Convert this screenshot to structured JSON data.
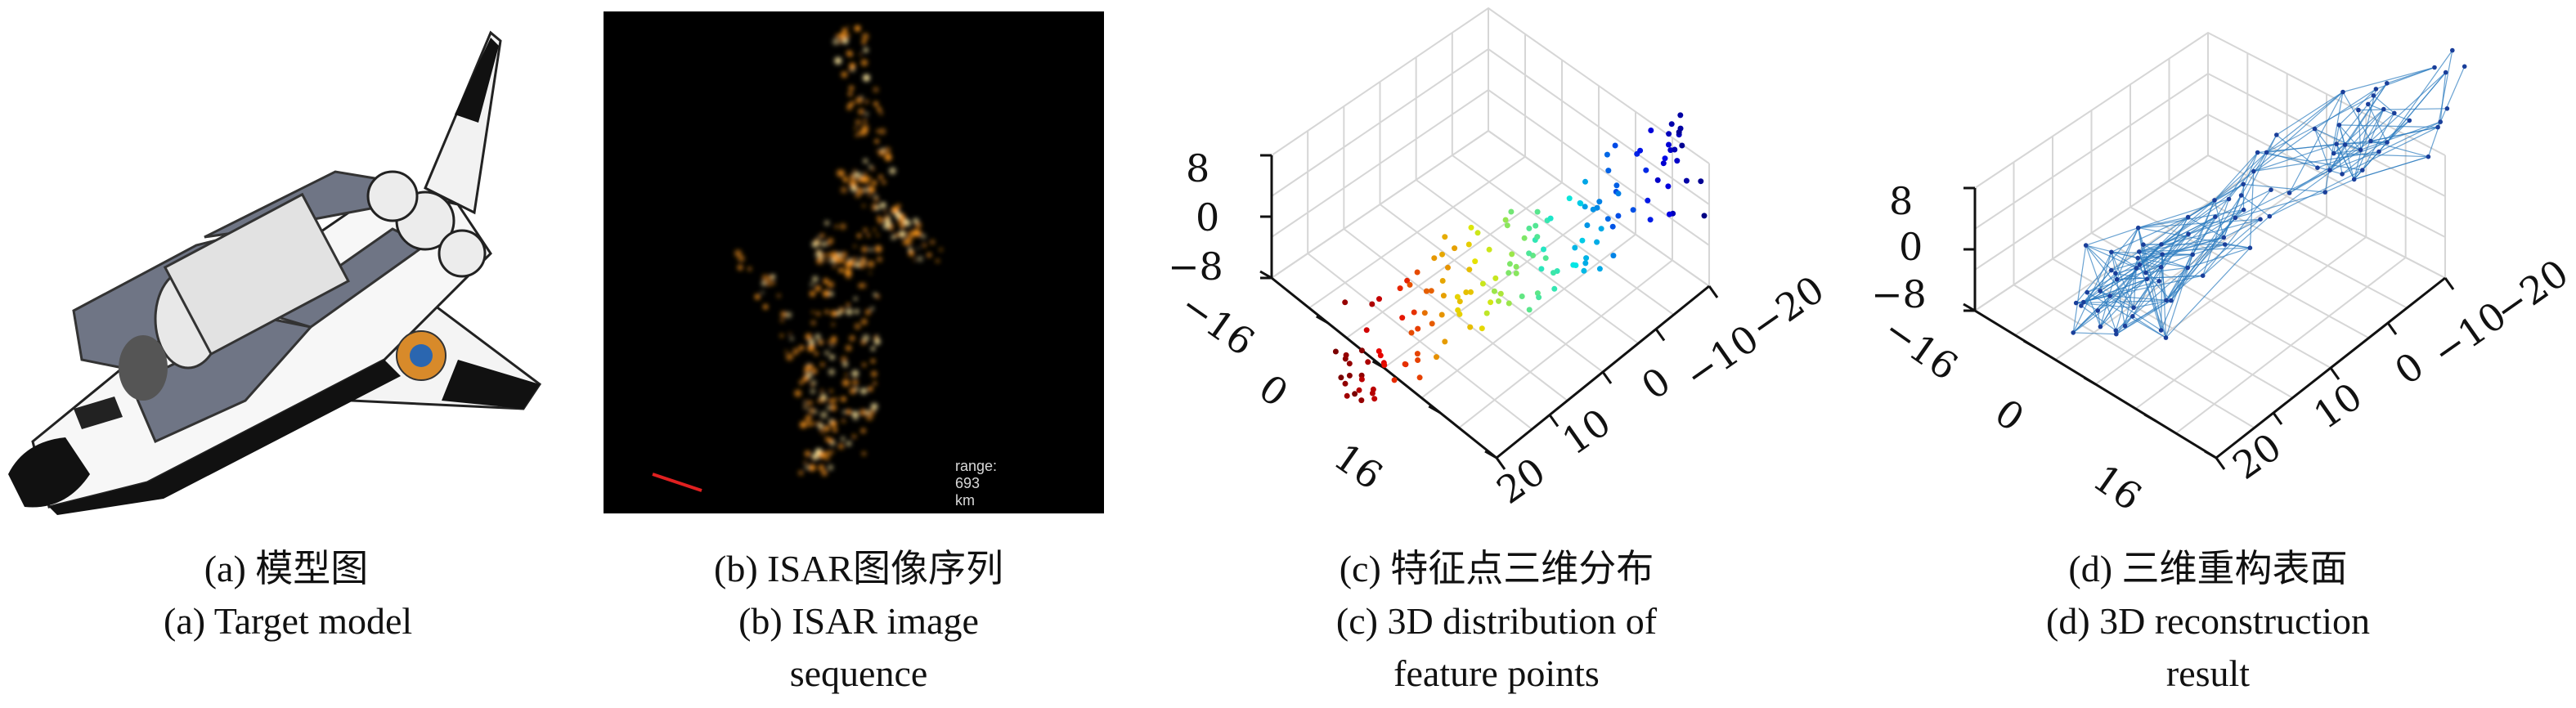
{
  "panels": [
    {
      "id": "a",
      "caption_zh": "(a) 模型图",
      "caption_en": [
        "(a) Target model"
      ]
    },
    {
      "id": "b",
      "caption_zh": "(b) ISAR图像序列",
      "caption_en": [
        "(b) ISAR image",
        "sequence"
      ],
      "range_label": "range: 693 km"
    },
    {
      "id": "c",
      "caption_zh": "(c) 特征点三维分布",
      "caption_en": [
        "(c) 3D distribution of",
        "feature points"
      ],
      "z_ticks": [
        "8",
        "0",
        "−8"
      ],
      "y_ticks": [
        "−16",
        "0",
        "16"
      ],
      "x_ticks": [
        "20",
        "10",
        "0",
        "−10",
        "−20"
      ]
    },
    {
      "id": "d",
      "caption_zh": "(d) 三维重构表面",
      "caption_en": [
        "(d) 3D reconstruction",
        "result"
      ],
      "z_ticks": [
        "8",
        "0",
        "−8"
      ],
      "y_ticks": [
        "−16",
        "0",
        "16"
      ],
      "x_ticks": [
        "20",
        "10",
        "0",
        "−10",
        "−20"
      ]
    }
  ],
  "colors": {
    "mesh": "#2b7bbf",
    "isar_hot": "#ff9a1f",
    "isar_core": "#ffe9a0",
    "range_bar": "#e02020"
  }
}
